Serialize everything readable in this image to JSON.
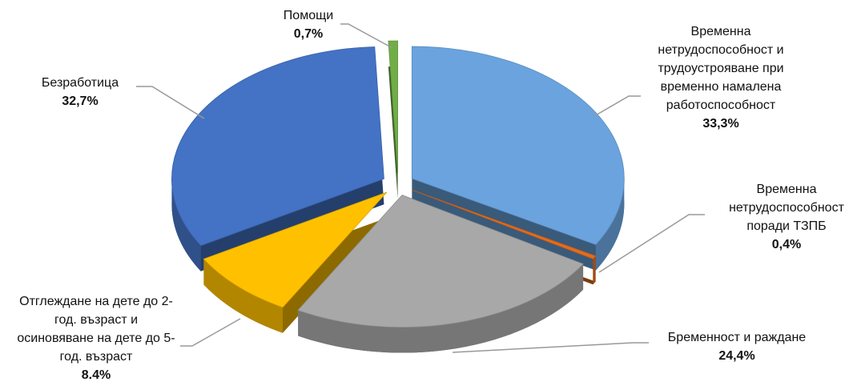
{
  "chart_data": {
    "type": "pie",
    "categories": [
      "Временна нетрудоспособност и трудоустрояване при временно намалена работоспособност",
      "Временна нетрудоспособност поради ТЗПБ",
      "Бременност и раждане",
      "Отглеждане на дете до 2-год. възраст и осиновяване на дете до 5-год. възраст",
      "Безработица",
      "Помощи"
    ],
    "values": [
      33.3,
      0.4,
      24.4,
      8.4,
      32.7,
      0.7
    ],
    "value_labels": [
      "33,3%",
      "0,4%",
      "24,4%",
      "8.4%",
      "32,7%",
      "0,7%"
    ],
    "colors": [
      "#6aa3de",
      "#e36c1c",
      "#a8a8a8",
      "#ffc000",
      "#4472c4",
      "#70ad47"
    ]
  }
}
